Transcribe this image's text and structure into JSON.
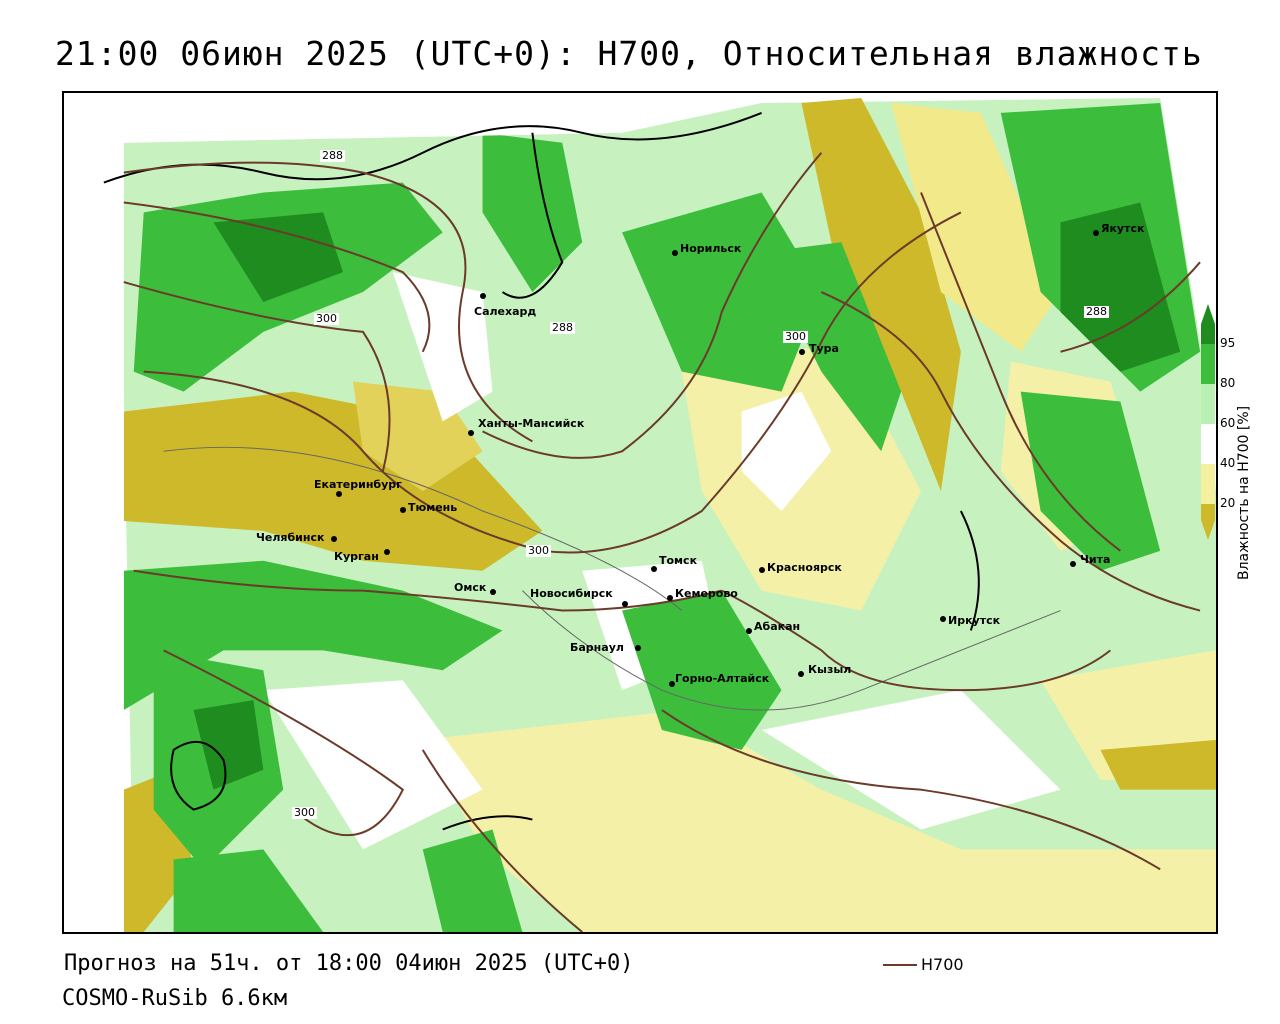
{
  "title": "21:00 06июн 2025 (UTC+0): H700, Относительная влажность",
  "footer": {
    "forecast": "Прогноз на 51ч. от 18:00 04июн 2025 (UTC+0)",
    "model": "COSMO-RuSib 6.6км"
  },
  "legend": {
    "line_label": "H700",
    "line_color": "#6b3a2a"
  },
  "colorbar": {
    "title": "Влажность на H700 [%]",
    "ticks": [
      "95",
      "80",
      "60",
      "40",
      "20"
    ],
    "colors": {
      "95": "#1e8c1e",
      "80": "#3cbd3c",
      "60": "#b9f0b4",
      "40": "#ffffff",
      "20": "#f5f0a0",
      "0": "#cdb92a"
    }
  },
  "cities": [
    {
      "name": "Якутск"
    },
    {
      "name": "Норильск"
    },
    {
      "name": "Салехард"
    },
    {
      "name": "Тура"
    },
    {
      "name": "Ханты-Мансийск"
    },
    {
      "name": "Екатеринбург"
    },
    {
      "name": "Тюмень"
    },
    {
      "name": "Челябинск"
    },
    {
      "name": "Курган"
    },
    {
      "name": "Томск"
    },
    {
      "name": "Красноярск"
    },
    {
      "name": "Омск"
    },
    {
      "name": "Новосибирск"
    },
    {
      "name": "Кемерово"
    },
    {
      "name": "Абакан"
    },
    {
      "name": "Иркутск"
    },
    {
      "name": "Барнаул"
    },
    {
      "name": "Кызыл"
    },
    {
      "name": "Горно-Алтайск"
    },
    {
      "name": "Чита"
    }
  ],
  "contour_labels": [
    "288",
    "300",
    "288",
    "300",
    "288",
    "300",
    "300"
  ]
}
